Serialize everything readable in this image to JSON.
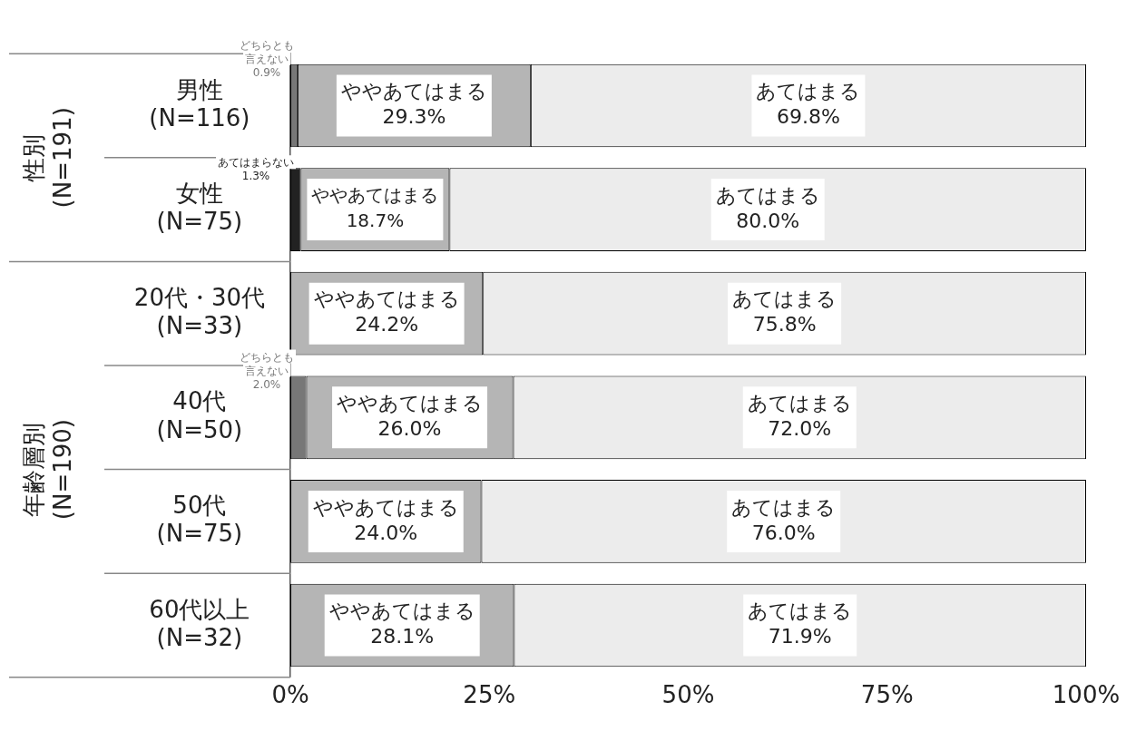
{
  "chart_data": {
    "type": "bar",
    "orientation": "horizontal",
    "stacked": true,
    "legend": false,
    "grid": false,
    "categories": [
      "男性\n(N=116)",
      "女性\n(N=75)",
      "20代・30代\n(N=33)",
      "40代\n(N=50)",
      "50代\n(N=75)",
      "60代以上\n(N=32)"
    ],
    "annotations": [
      "性別\n(N=191)",
      "年齢層別\n(N=190)"
    ],
    "xlim": [
      0,
      100
    ],
    "xticks": [
      {
        "value": 0,
        "label": "0%"
      },
      {
        "value": 25,
        "label": "25%"
      },
      {
        "value": 50,
        "label": "50%"
      },
      {
        "value": 75,
        "label": "75%"
      },
      {
        "value": 100,
        "label": "100%"
      }
    ],
    "series": [
      {
        "name": "あてはまらない",
        "color": "#222222",
        "values": [
          null,
          1.3,
          null,
          null,
          null,
          null
        ],
        "value_labels": [
          null,
          "1.3%",
          null,
          null,
          null,
          null
        ]
      },
      {
        "name": "どちらとも言えない",
        "color": "#777777",
        "values": [
          0.9,
          null,
          null,
          2.0,
          null,
          null
        ],
        "value_labels": [
          "0.9%",
          null,
          null,
          "2.0%",
          null,
          null
        ]
      },
      {
        "name": "ややあてはまる",
        "color": "#b5b5b5",
        "values": [
          29.3,
          18.7,
          24.2,
          26.0,
          24.0,
          28.1
        ],
        "value_labels": [
          "29.3%",
          "18.7%",
          "24.2%",
          "26.0%",
          "24.0%",
          "28.1%"
        ]
      },
      {
        "name": "あてはまる",
        "color": "#ececec",
        "values": [
          69.8,
          80.0,
          75.8,
          72.0,
          76.0,
          71.9
        ],
        "value_labels": [
          "69.8%",
          "80.0%",
          "75.8%",
          "72.0%",
          "76.0%",
          "71.9%"
        ]
      }
    ]
  }
}
